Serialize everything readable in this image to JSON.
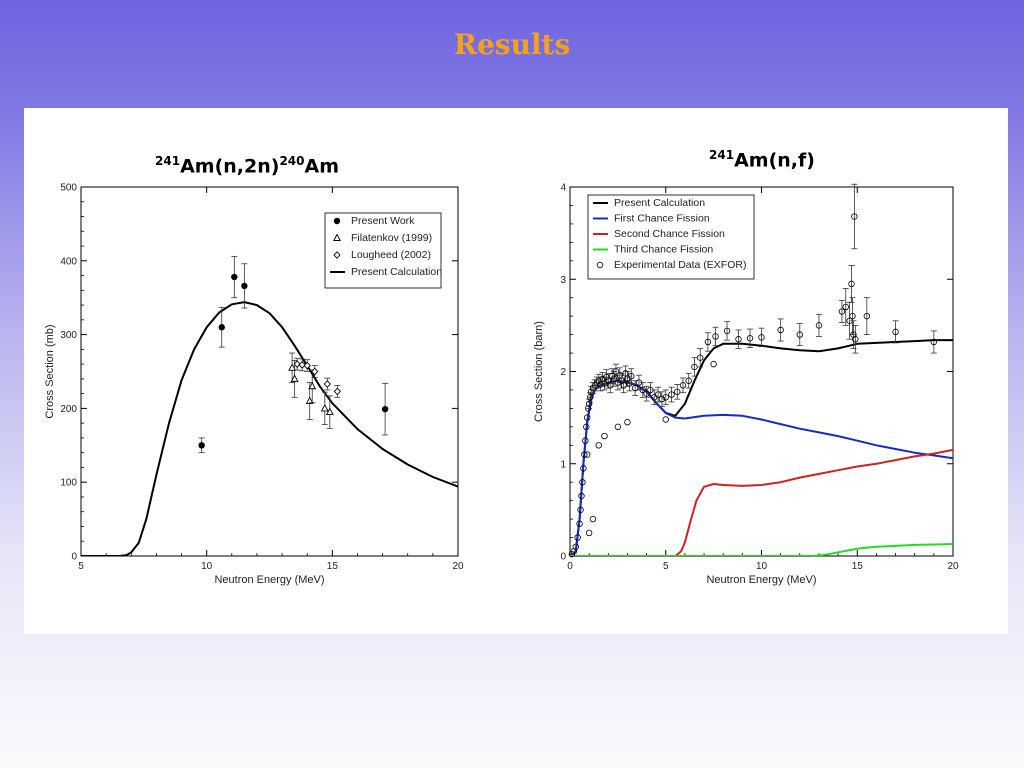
{
  "slide": {
    "title": "Results"
  },
  "chart_data": [
    {
      "type": "scatter",
      "title_parts": {
        "iso1": "241",
        "mid": "Am(n,2n)",
        "iso2": "240",
        "end": "Am"
      },
      "xlabel": "Neutron Energy (MeV)",
      "ylabel": "Cross Section (mb)",
      "xlim": [
        5,
        20
      ],
      "ylim": [
        0,
        500
      ],
      "xticks": [
        "5",
        "10",
        "15",
        "20"
      ],
      "yticks": [
        "0",
        "100",
        "200",
        "300",
        "400",
        "500"
      ],
      "grid": false,
      "legend_position": "top-right",
      "legend": [
        "Present Work",
        "Filatenkov (1999)",
        "Lougheed (2002)",
        "Present Calculation"
      ],
      "series": [
        {
          "name": "Present Work",
          "marker": "filled-circle",
          "points": [
            {
              "x": 9.8,
              "y": 150,
              "err": 10
            },
            {
              "x": 10.6,
              "y": 310,
              "err": 27
            },
            {
              "x": 11.1,
              "y": 378,
              "err": 28
            },
            {
              "x": 11.5,
              "y": 366,
              "err": 30
            },
            {
              "x": 17.1,
              "y": 199,
              "err": 35
            }
          ]
        },
        {
          "name": "Filatenkov (1999)",
          "marker": "open-triangle",
          "points": [
            {
              "x": 13.4,
              "y": 255,
              "err": 20
            },
            {
              "x": 13.5,
              "y": 240,
              "err": 25
            },
            {
              "x": 14.1,
              "y": 210,
              "err": 25
            },
            {
              "x": 14.2,
              "y": 230,
              "err": 22
            },
            {
              "x": 14.7,
              "y": 200,
              "err": 22
            },
            {
              "x": 14.9,
              "y": 195,
              "err": 22
            }
          ]
        },
        {
          "name": "Lougheed (2002)",
          "marker": "open-diamond",
          "points": [
            {
              "x": 13.6,
              "y": 260,
              "err": 8
            },
            {
              "x": 13.8,
              "y": 259,
              "err": 8
            },
            {
              "x": 14.0,
              "y": 258,
              "err": 8
            },
            {
              "x": 14.3,
              "y": 250,
              "err": 8
            },
            {
              "x": 14.8,
              "y": 233,
              "err": 8
            },
            {
              "x": 15.2,
              "y": 223,
              "err": 8
            }
          ]
        },
        {
          "name": "Present Calculation",
          "line_color": "#000000",
          "x": [
            5,
            6,
            6.5,
            6.8,
            7.0,
            7.3,
            7.6,
            8.0,
            8.5,
            9.0,
            9.5,
            10.0,
            10.5,
            11.0,
            11.5,
            12.0,
            12.5,
            13.0,
            13.5,
            14.0,
            14.5,
            15.0,
            16.0,
            17.0,
            18.0,
            19.0,
            20.0
          ],
          "y": [
            0,
            0,
            0,
            1,
            5,
            18,
            50,
            110,
            180,
            238,
            280,
            310,
            330,
            341,
            344,
            340,
            329,
            310,
            285,
            258,
            230,
            207,
            172,
            145,
            124,
            107,
            94
          ]
        }
      ]
    },
    {
      "type": "line",
      "title_parts": {
        "iso1": "241",
        "mid": "Am(n,f)"
      },
      "xlabel": "Neutron Energy (MeV)",
      "ylabel": "Cross Section (barn)",
      "xlim": [
        0,
        20
      ],
      "ylim": [
        0,
        4
      ],
      "xticks": [
        "0",
        "5",
        "10",
        "15",
        "20"
      ],
      "yticks": [
        "0",
        "1",
        "2",
        "3",
        "4"
      ],
      "grid": false,
      "legend_position": "top-left",
      "legend": [
        "Present Calculation",
        "First Chance Fission",
        "Second Chance Fission",
        "Third Chance Fission",
        "Experimental Data (EXFOR)"
      ],
      "series": [
        {
          "name": "Present Calculation",
          "color": "#000000",
          "x": [
            0,
            0.3,
            0.5,
            0.7,
            0.9,
            1.1,
            1.3,
            1.6,
            2.0,
            2.5,
            3.0,
            3.5,
            4.0,
            4.5,
            5.0,
            5.5,
            6.0,
            6.5,
            7.0,
            7.5,
            8.0,
            9.0,
            10.0,
            11.0,
            12.0,
            13.0,
            14.0,
            15.0,
            16.0,
            17.0,
            18.0,
            19.0,
            20.0
          ],
          "y": [
            0,
            0.05,
            0.4,
            1.0,
            1.45,
            1.7,
            1.8,
            1.85,
            1.88,
            1.9,
            1.88,
            1.85,
            1.78,
            1.66,
            1.55,
            1.52,
            1.65,
            1.9,
            2.12,
            2.25,
            2.3,
            2.3,
            2.28,
            2.25,
            2.23,
            2.22,
            2.25,
            2.3,
            2.31,
            2.32,
            2.33,
            2.34,
            2.34
          ]
        },
        {
          "name": "First Chance Fission",
          "color": "#1a28c8",
          "x": [
            0,
            0.3,
            0.5,
            0.7,
            0.9,
            1.1,
            1.3,
            1.6,
            2.0,
            2.5,
            3.0,
            3.5,
            4.0,
            4.5,
            5.0,
            5.5,
            6.0,
            7.0,
            8.0,
            9.0,
            10.0,
            11.0,
            12.0,
            13.0,
            14.0,
            15.0,
            16.0,
            17.0,
            18.0,
            19.0,
            20.0
          ],
          "y": [
            0,
            0.05,
            0.4,
            1.0,
            1.45,
            1.7,
            1.8,
            1.85,
            1.88,
            1.9,
            1.88,
            1.85,
            1.78,
            1.66,
            1.55,
            1.5,
            1.49,
            1.52,
            1.53,
            1.52,
            1.48,
            1.43,
            1.38,
            1.34,
            1.3,
            1.25,
            1.2,
            1.16,
            1.12,
            1.09,
            1.06
          ]
        },
        {
          "name": "Second Chance Fission",
          "color": "#cc2222",
          "x": [
            0,
            5.5,
            5.8,
            6.0,
            6.3,
            6.6,
            7.0,
            7.5,
            8.0,
            9.0,
            10.0,
            11.0,
            12.0,
            13.0,
            14.0,
            15.0,
            16.0,
            17.0,
            18.0,
            19.0,
            20.0
          ],
          "y": [
            0,
            0,
            0.05,
            0.15,
            0.38,
            0.6,
            0.75,
            0.78,
            0.77,
            0.76,
            0.77,
            0.8,
            0.85,
            0.89,
            0.93,
            0.97,
            1.0,
            1.04,
            1.08,
            1.11,
            1.15
          ]
        },
        {
          "name": "Third Chance Fission",
          "color": "#22dd22",
          "x": [
            0,
            12.5,
            13.0,
            13.5,
            14.0,
            14.5,
            15.0,
            16.0,
            17.0,
            18.0,
            19.0,
            20.0
          ],
          "y": [
            0,
            0,
            0.005,
            0.02,
            0.04,
            0.06,
            0.08,
            0.1,
            0.11,
            0.12,
            0.125,
            0.13
          ]
        },
        {
          "name": "Experimental Data (EXFOR)",
          "marker": "open-circle",
          "points": [
            {
              "x": 0.1,
              "y": 0.02,
              "err": 0
            },
            {
              "x": 0.2,
              "y": 0.05,
              "err": 0
            },
            {
              "x": 0.3,
              "y": 0.1,
              "err": 0
            },
            {
              "x": 0.4,
              "y": 0.2,
              "err": 0
            },
            {
              "x": 0.5,
              "y": 0.35,
              "err": 0
            },
            {
              "x": 0.55,
              "y": 0.5,
              "err": 0
            },
            {
              "x": 0.6,
              "y": 0.65,
              "err": 0
            },
            {
              "x": 0.65,
              "y": 0.8,
              "err": 0
            },
            {
              "x": 0.7,
              "y": 0.95,
              "err": 0
            },
            {
              "x": 0.75,
              "y": 1.1,
              "err": 0
            },
            {
              "x": 0.8,
              "y": 1.25,
              "err": 0
            },
            {
              "x": 0.85,
              "y": 1.4,
              "err": 0
            },
            {
              "x": 0.9,
              "y": 1.5,
              "err": 0
            },
            {
              "x": 0.95,
              "y": 1.6,
              "err": 0
            },
            {
              "x": 1.0,
              "y": 1.65,
              "err": 0.05
            },
            {
              "x": 1.05,
              "y": 1.72,
              "err": 0.05
            },
            {
              "x": 1.1,
              "y": 1.78,
              "err": 0.06
            },
            {
              "x": 1.2,
              "y": 1.82,
              "err": 0.06
            },
            {
              "x": 1.3,
              "y": 1.85,
              "err": 0.06
            },
            {
              "x": 1.4,
              "y": 1.88,
              "err": 0.06
            },
            {
              "x": 1.5,
              "y": 1.9,
              "err": 0.07
            },
            {
              "x": 1.6,
              "y": 1.86,
              "err": 0.07
            },
            {
              "x": 1.7,
              "y": 1.92,
              "err": 0.07
            },
            {
              "x": 1.8,
              "y": 1.87,
              "err": 0.07
            },
            {
              "x": 1.9,
              "y": 1.94,
              "err": 0.08
            },
            {
              "x": 2.0,
              "y": 1.9,
              "err": 0.08
            },
            {
              "x": 2.1,
              "y": 1.85,
              "err": 0.08
            },
            {
              "x": 2.2,
              "y": 1.95,
              "err": 0.08
            },
            {
              "x": 2.3,
              "y": 1.92,
              "err": 0.08
            },
            {
              "x": 2.4,
              "y": 2.0,
              "err": 0.08
            },
            {
              "x": 2.5,
              "y": 1.88,
              "err": 0.08
            },
            {
              "x": 2.6,
              "y": 1.96,
              "err": 0.08
            },
            {
              "x": 2.7,
              "y": 1.9,
              "err": 0.08
            },
            {
              "x": 2.8,
              "y": 1.85,
              "err": 0.08
            },
            {
              "x": 2.9,
              "y": 1.98,
              "err": 0.08
            },
            {
              "x": 3.0,
              "y": 1.92,
              "err": 0.08
            },
            {
              "x": 3.1,
              "y": 1.87,
              "err": 0.08
            },
            {
              "x": 3.2,
              "y": 1.95,
              "err": 0.08
            },
            {
              "x": 3.4,
              "y": 1.82,
              "err": 0.08
            },
            {
              "x": 3.6,
              "y": 1.88,
              "err": 0.08
            },
            {
              "x": 3.8,
              "y": 1.8,
              "err": 0.08
            },
            {
              "x": 4.0,
              "y": 1.76,
              "err": 0.08
            },
            {
              "x": 4.2,
              "y": 1.8,
              "err": 0.08
            },
            {
              "x": 4.4,
              "y": 1.72,
              "err": 0.08
            },
            {
              "x": 4.6,
              "y": 1.75,
              "err": 0.08
            },
            {
              "x": 4.8,
              "y": 1.7,
              "err": 0.08
            },
            {
              "x": 5.0,
              "y": 1.72,
              "err": 0.08
            },
            {
              "x": 5.3,
              "y": 1.75,
              "err": 0.08
            },
            {
              "x": 5.6,
              "y": 1.78,
              "err": 0.08
            },
            {
              "x": 5.9,
              "y": 1.85,
              "err": 0.08
            },
            {
              "x": 6.2,
              "y": 1.9,
              "err": 0.08
            },
            {
              "x": 6.5,
              "y": 2.05,
              "err": 0.1
            },
            {
              "x": 6.8,
              "y": 2.15,
              "err": 0.1
            },
            {
              "x": 7.2,
              "y": 2.32,
              "err": 0.1
            },
            {
              "x": 7.6,
              "y": 2.38,
              "err": 0.1
            },
            {
              "x": 8.2,
              "y": 2.44,
              "err": 0.1
            },
            {
              "x": 8.8,
              "y": 2.35,
              "err": 0.1
            },
            {
              "x": 9.4,
              "y": 2.36,
              "err": 0.1
            },
            {
              "x": 10.0,
              "y": 2.37,
              "err": 0.1
            },
            {
              "x": 11.0,
              "y": 2.45,
              "err": 0.12
            },
            {
              "x": 12.0,
              "y": 2.4,
              "err": 0.12
            },
            {
              "x": 13.0,
              "y": 2.5,
              "err": 0.12
            },
            {
              "x": 14.2,
              "y": 2.65,
              "err": 0.12
            },
            {
              "x": 14.4,
              "y": 2.7,
              "err": 0.2
            },
            {
              "x": 14.6,
              "y": 2.55,
              "err": 0.2
            },
            {
              "x": 14.7,
              "y": 2.95,
              "err": 0.2
            },
            {
              "x": 14.75,
              "y": 2.6,
              "err": 0.2
            },
            {
              "x": 14.8,
              "y": 2.4,
              "err": 0.15
            },
            {
              "x": 14.9,
              "y": 2.35,
              "err": 0.15
            },
            {
              "x": 14.85,
              "y": 3.68,
              "err": 0.35
            },
            {
              "x": 15.5,
              "y": 2.6,
              "err": 0.2
            },
            {
              "x": 17.0,
              "y": 2.43,
              "err": 0.12
            },
            {
              "x": 19.0,
              "y": 2.32,
              "err": 0.12
            },
            {
              "x": 2.5,
              "y": 1.4,
              "err": 0
            },
            {
              "x": 3.0,
              "y": 1.45,
              "err": 0
            },
            {
              "x": 1.8,
              "y": 1.3,
              "err": 0
            },
            {
              "x": 1.5,
              "y": 1.2,
              "err": 0
            },
            {
              "x": 5.0,
              "y": 1.48,
              "err": 0
            },
            {
              "x": 7.5,
              "y": 2.08,
              "err": 0
            },
            {
              "x": 0.9,
              "y": 1.1,
              "err": 0
            },
            {
              "x": 1.2,
              "y": 0.4,
              "err": 0
            },
            {
              "x": 1.0,
              "y": 0.25,
              "err": 0
            }
          ]
        }
      ]
    }
  ]
}
